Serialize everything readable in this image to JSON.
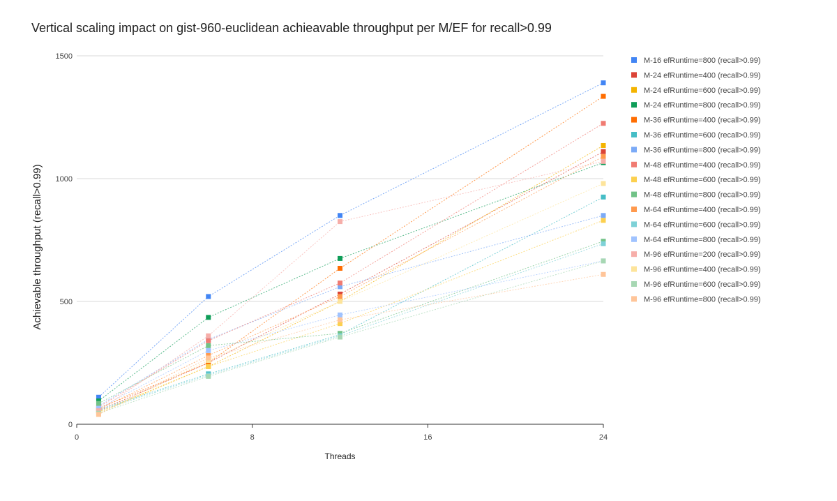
{
  "chart_data": {
    "type": "scatter",
    "title": "Vertical scaling impact on gist-960-euclidean achieavable throughput per M/EF for recall>0.99",
    "xlabel": "Threads",
    "ylabel": "Achievable throughput (recall>0.99)",
    "xlim": [
      0,
      24
    ],
    "ylim": [
      0,
      1500
    ],
    "xticks": [
      0,
      8,
      16,
      24
    ],
    "yticks": [
      0,
      500,
      1000,
      1500
    ],
    "grid": "horizontal",
    "legend_position": "right",
    "series": [
      {
        "name": "M-16 efRuntime=800 (recall>0.99)",
        "color": "#4285F4",
        "x": [
          1,
          6,
          12,
          24
        ],
        "y": [
          110,
          520,
          850,
          1390
        ]
      },
      {
        "name": "M-24 efRuntime=400 (recall>0.99)",
        "color": "#DB4437",
        "x": [
          1,
          6,
          12,
          24
        ],
        "y": [
          55,
          250,
          530,
          1110
        ]
      },
      {
        "name": "M-24 efRuntime=600 (recall>0.99)",
        "color": "#F4B400",
        "x": [
          1,
          6,
          12,
          24
        ],
        "y": [
          50,
          235,
          500,
          1135
        ]
      },
      {
        "name": "M-24 efRuntime=800 (recall>0.99)",
        "color": "#0F9D58",
        "x": [
          1,
          6,
          12,
          24
        ],
        "y": [
          95,
          435,
          675,
          1065
        ]
      },
      {
        "name": "M-36 efRuntime=400 (recall>0.99)",
        "color": "#FF6D01",
        "x": [
          1,
          6,
          12,
          24
        ],
        "y": [
          65,
          250,
          635,
          1335
        ]
      },
      {
        "name": "M-36 efRuntime=600 (recall>0.99)",
        "color": "#46BDC6",
        "x": [
          1,
          6,
          12,
          24
        ],
        "y": [
          60,
          205,
          365,
          925
        ]
      },
      {
        "name": "M-36 efRuntime=800 (recall>0.99)",
        "color": "#7BAAF7",
        "x": [
          1,
          6,
          12,
          24
        ],
        "y": [
          75,
          345,
          560,
          850
        ]
      },
      {
        "name": "M-48 efRuntime=400 (recall>0.99)",
        "color": "#F07B72",
        "x": [
          1,
          6,
          12,
          24
        ],
        "y": [
          70,
          340,
          575,
          1225
        ]
      },
      {
        "name": "M-48 efRuntime=600 (recall>0.99)",
        "color": "#FCD04F",
        "x": [
          1,
          6,
          12,
          24
        ],
        "y": [
          45,
          235,
          410,
          830
        ]
      },
      {
        "name": "M-48 efRuntime=800 (recall>0.99)",
        "color": "#71C287",
        "x": [
          1,
          6,
          12,
          24
        ],
        "y": [
          85,
          320,
          370,
          745
        ]
      },
      {
        "name": "M-64 efRuntime=400 (recall>0.99)",
        "color": "#FF994D",
        "x": [
          1,
          6,
          12,
          24
        ],
        "y": [
          60,
          280,
          520,
          1090
        ]
      },
      {
        "name": "M-64 efRuntime=600 (recall>0.99)",
        "color": "#7ED1D7",
        "x": [
          1,
          6,
          12,
          24
        ],
        "y": [
          55,
          200,
          360,
          735
        ]
      },
      {
        "name": "M-64 efRuntime=800 (recall>0.99)",
        "color": "#A0C3FF",
        "x": [
          1,
          6,
          12,
          24
        ],
        "y": [
          65,
          300,
          445,
          665
        ]
      },
      {
        "name": "M-96 efRuntime=200 (recall>0.99)",
        "color": "#F6AEA9",
        "x": [
          1,
          6,
          12,
          24
        ],
        "y": [
          55,
          360,
          825,
          1070
        ]
      },
      {
        "name": "M-96 efRuntime=400 (recall>0.99)",
        "color": "#FDE49B",
        "x": [
          1,
          6,
          12,
          24
        ],
        "y": [
          40,
          260,
          500,
          980
        ]
      },
      {
        "name": "M-96 efRuntime=600 (recall>0.99)",
        "color": "#A7D7B3",
        "x": [
          1,
          6,
          12,
          24
        ],
        "y": [
          45,
          195,
          355,
          665
        ]
      },
      {
        "name": "M-96 efRuntime=800 (recall>0.99)",
        "color": "#FFC599",
        "x": [
          1,
          6,
          12,
          24
        ],
        "y": [
          40,
          270,
          425,
          610
        ]
      }
    ]
  }
}
